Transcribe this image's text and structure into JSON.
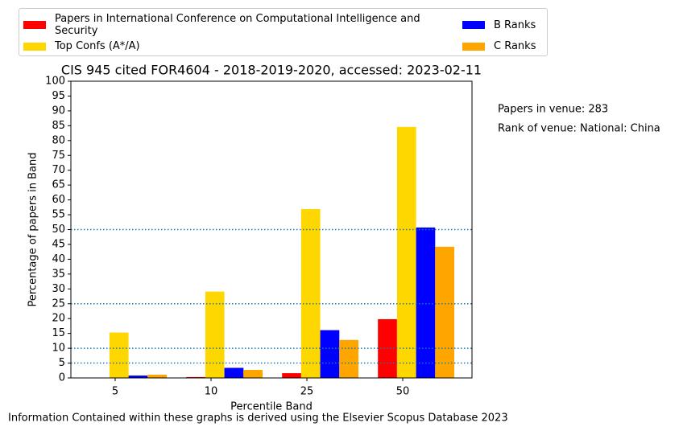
{
  "chart_data": {
    "type": "bar",
    "title": "CIS 945 cited FOR4604 - 2018-2019-2020, accessed: 2023-02-11",
    "x_label": "Percentile Band",
    "y_label": "Percentage of papers in Band",
    "categories": [
      "5",
      "10",
      "25",
      "50"
    ],
    "series": [
      {
        "name": "Papers in International Conference on Computational Intelligence and Security",
        "color": "#ff0000",
        "values": [
          0,
          0.3,
          1.6,
          19.8
        ]
      },
      {
        "name": "Top Confs (A*/A)",
        "color": "#ffd700",
        "values": [
          15.3,
          29.1,
          56.9,
          84.6
        ]
      },
      {
        "name": "B Ranks",
        "color": "#0000ff",
        "values": [
          0.8,
          3.4,
          16.1,
          50.7
        ]
      },
      {
        "name": "C Ranks",
        "color": "#ffa500",
        "values": [
          1.1,
          2.7,
          12.8,
          44.2
        ]
      }
    ],
    "ylim": [
      0,
      100
    ],
    "yticks": [
      0,
      5,
      10,
      15,
      20,
      25,
      30,
      35,
      40,
      45,
      50,
      55,
      60,
      65,
      70,
      75,
      80,
      85,
      90,
      95,
      100
    ],
    "reference_lines": [
      5,
      10,
      25,
      50
    ],
    "reference_line_color": "#1f77b4",
    "annotations": [
      "Papers in venue: 283",
      "Rank of venue: National: China"
    ],
    "footer": "Information Contained within these graphs is derived using the Elsevier Scopus Database 2023",
    "legend": "upper center"
  }
}
